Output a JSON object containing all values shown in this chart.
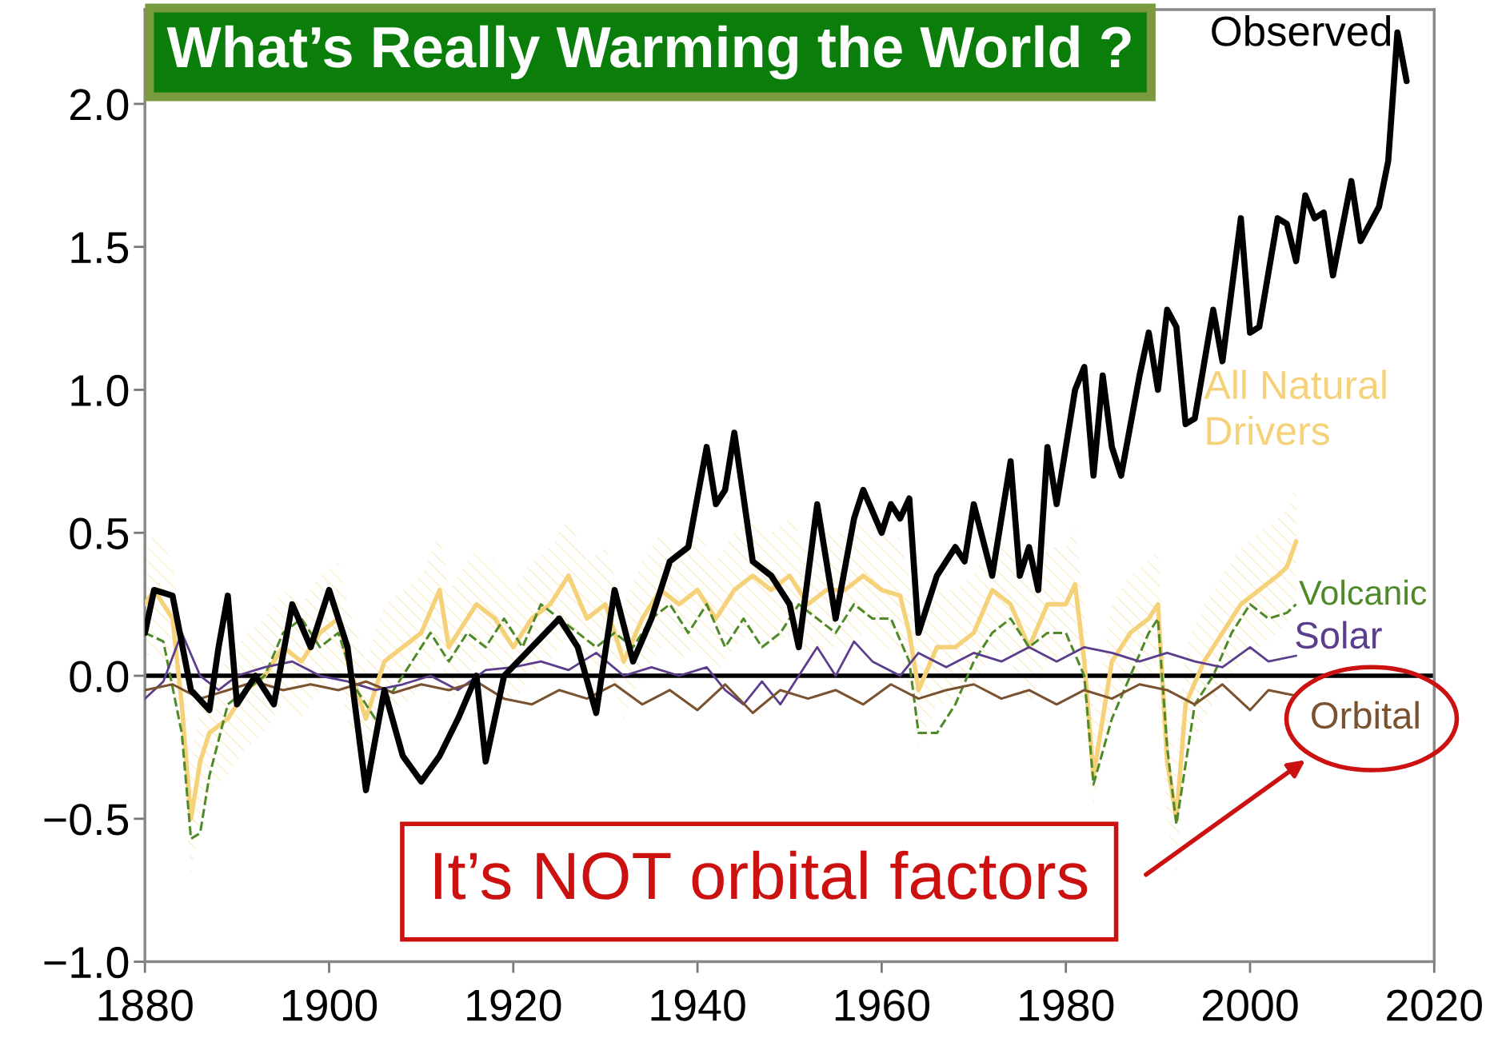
{
  "chart_data": {
    "type": "line",
    "title": "What’s Really Warming the World ?",
    "annotations": [
      "It’s NOT orbital factors"
    ],
    "xlim": [
      1880,
      2020
    ],
    "xticks": [
      1880,
      1900,
      1920,
      1940,
      1960,
      1980,
      2000,
      2020
    ],
    "ylim": [
      -1.0,
      2.33
    ],
    "yticks": [
      {
        "value": -1.0,
        "label": "−1.0"
      },
      {
        "value": -0.5,
        "label": "−0.5"
      },
      {
        "value": 0.0,
        "label": "0.0"
      },
      {
        "value": 0.5,
        "label": "0.5"
      },
      {
        "value": 1.0,
        "label": "1.0"
      },
      {
        "value": 1.5,
        "label": "1.5"
      },
      {
        "value": 2.0,
        "label": "2.0"
      }
    ],
    "grid": false,
    "legend": false,
    "marker": "none",
    "ref_lines": [
      {
        "axis": "y",
        "value": 0,
        "color": "#000000",
        "line_style": "solid"
      }
    ],
    "series": [
      {
        "name": "All Natural\nDrivers",
        "color": "#f5d27a",
        "line_style": "solid",
        "x": [
          1880,
          1881,
          1883,
          1884,
          1885,
          1886,
          1887,
          1889,
          1891,
          1893,
          1895,
          1897,
          1899,
          1901,
          1902,
          1904,
          1906,
          1908,
          1910,
          1912,
          1913,
          1916,
          1918,
          1920,
          1922,
          1924,
          1926,
          1928,
          1930,
          1932,
          1934,
          1936,
          1938,
          1940,
          1942,
          1944,
          1946,
          1948,
          1950,
          1952,
          1954,
          1956,
          1958,
          1960,
          1962,
          1963,
          1964,
          1966,
          1968,
          1970,
          1972,
          1974,
          1976,
          1978,
          1980,
          1981,
          1982,
          1983,
          1985,
          1987,
          1989,
          1990,
          1991,
          1992,
          1993,
          1995,
          1997,
          1999,
          2001,
          2003,
          2004,
          2005
        ],
        "values": [
          0.25,
          0.3,
          0.2,
          -0.1,
          -0.5,
          -0.3,
          -0.2,
          -0.15,
          -0.05,
          0.0,
          0.1,
          0.05,
          0.15,
          0.2,
          0.05,
          -0.15,
          0.05,
          0.1,
          0.15,
          0.3,
          0.1,
          0.25,
          0.2,
          0.1,
          0.2,
          0.25,
          0.35,
          0.2,
          0.25,
          0.05,
          0.2,
          0.3,
          0.25,
          0.3,
          0.2,
          0.3,
          0.35,
          0.3,
          0.35,
          0.25,
          0.3,
          0.3,
          0.35,
          0.3,
          0.28,
          0.15,
          -0.05,
          0.1,
          0.1,
          0.15,
          0.3,
          0.25,
          0.1,
          0.25,
          0.25,
          0.32,
          0.05,
          -0.35,
          0.05,
          0.15,
          0.2,
          0.25,
          -0.3,
          -0.5,
          -0.1,
          0.05,
          0.15,
          0.25,
          0.3,
          0.35,
          0.38,
          0.47
        ],
        "lower": [
          0.05,
          0.1,
          0.0,
          -0.3,
          -0.7,
          -0.5,
          -0.4,
          -0.35,
          -0.25,
          -0.2,
          -0.1,
          -0.15,
          -0.05,
          0.0,
          -0.15,
          -0.35,
          -0.15,
          -0.1,
          -0.05,
          0.1,
          -0.1,
          0.05,
          0.0,
          -0.1,
          0.0,
          0.05,
          0.15,
          0.0,
          0.05,
          -0.15,
          0.0,
          0.1,
          0.05,
          0.1,
          0.0,
          0.1,
          0.15,
          0.1,
          0.15,
          0.05,
          0.1,
          0.1,
          0.15,
          0.1,
          0.08,
          -0.05,
          -0.25,
          -0.1,
          -0.1,
          -0.05,
          0.1,
          0.05,
          -0.1,
          0.05,
          0.05,
          0.12,
          -0.15,
          -0.45,
          -0.15,
          -0.05,
          0.0,
          0.05,
          -0.5,
          -0.7,
          -0.3,
          -0.15,
          -0.05,
          0.05,
          0.1,
          0.15,
          0.18,
          0.27
        ],
        "upper": [
          0.45,
          0.5,
          0.4,
          0.1,
          -0.3,
          -0.1,
          0.0,
          0.05,
          0.15,
          0.2,
          0.3,
          0.25,
          0.35,
          0.4,
          0.25,
          0.05,
          0.25,
          0.3,
          0.35,
          0.5,
          0.3,
          0.45,
          0.4,
          0.3,
          0.4,
          0.45,
          0.55,
          0.4,
          0.45,
          0.25,
          0.4,
          0.5,
          0.45,
          0.5,
          0.4,
          0.5,
          0.55,
          0.5,
          0.55,
          0.45,
          0.5,
          0.5,
          0.55,
          0.5,
          0.48,
          0.35,
          0.15,
          0.3,
          0.3,
          0.35,
          0.5,
          0.45,
          0.3,
          0.45,
          0.45,
          0.52,
          0.25,
          -0.15,
          0.25,
          0.35,
          0.4,
          0.45,
          -0.1,
          -0.3,
          0.1,
          0.25,
          0.35,
          0.45,
          0.5,
          0.55,
          0.58,
          0.67
        ]
      },
      {
        "name": "Volcanic",
        "color": "#4f8a2a",
        "line_style": "dashed",
        "x": [
          1880,
          1882,
          1884,
          1885,
          1886,
          1887,
          1889,
          1891,
          1893,
          1895,
          1897,
          1899,
          1901,
          1902,
          1903,
          1905,
          1907,
          1909,
          1911,
          1913,
          1915,
          1917,
          1919,
          1921,
          1923,
          1925,
          1927,
          1929,
          1931,
          1933,
          1935,
          1937,
          1939,
          1941,
          1943,
          1945,
          1947,
          1949,
          1951,
          1953,
          1955,
          1957,
          1959,
          1961,
          1963,
          1964,
          1966,
          1968,
          1970,
          1972,
          1974,
          1976,
          1978,
          1980,
          1982,
          1983,
          1985,
          1987,
          1989,
          1990,
          1991,
          1992,
          1994,
          1996,
          1998,
          2000,
          2002,
          2004,
          2005
        ],
        "values": [
          0.15,
          0.12,
          -0.2,
          -0.57,
          -0.55,
          -0.35,
          -0.1,
          -0.05,
          0.0,
          0.15,
          0.2,
          0.1,
          0.15,
          0.05,
          -0.05,
          -0.15,
          -0.05,
          0.05,
          0.15,
          0.05,
          0.15,
          0.1,
          0.2,
          0.1,
          0.25,
          0.2,
          0.15,
          0.1,
          0.15,
          0.1,
          0.2,
          0.25,
          0.15,
          0.25,
          0.1,
          0.2,
          0.1,
          0.15,
          0.25,
          0.2,
          0.15,
          0.25,
          0.2,
          0.2,
          0.05,
          -0.2,
          -0.2,
          -0.1,
          0.05,
          0.15,
          0.2,
          0.1,
          0.15,
          0.15,
          0.0,
          -0.38,
          -0.15,
          0.0,
          0.15,
          0.2,
          -0.25,
          -0.52,
          -0.1,
          0.0,
          0.15,
          0.25,
          0.2,
          0.22,
          0.25
        ]
      },
      {
        "name": "Solar",
        "color": "#5b3d8c",
        "line_style": "solid",
        "x": [
          1880,
          1882,
          1884,
          1886,
          1888,
          1890,
          1893,
          1896,
          1899,
          1902,
          1905,
          1908,
          1911,
          1914,
          1917,
          1920,
          1923,
          1926,
          1929,
          1932,
          1935,
          1938,
          1941,
          1943,
          1945,
          1947,
          1949,
          1951,
          1953,
          1955,
          1957,
          1959,
          1962,
          1964,
          1967,
          1970,
          1973,
          1976,
          1979,
          1982,
          1985,
          1988,
          1991,
          1994,
          1997,
          2000,
          2002,
          2005
        ],
        "values": [
          -0.08,
          -0.02,
          0.15,
          0.0,
          -0.05,
          0.0,
          0.03,
          0.05,
          0.0,
          -0.02,
          -0.05,
          -0.03,
          0.0,
          -0.05,
          0.02,
          0.03,
          0.05,
          0.02,
          0.08,
          0.0,
          0.03,
          0.0,
          0.03,
          -0.05,
          -0.1,
          -0.02,
          -0.1,
          0.0,
          0.1,
          0.0,
          0.12,
          0.05,
          0.0,
          0.08,
          0.03,
          0.08,
          0.05,
          0.1,
          0.05,
          0.1,
          0.08,
          0.05,
          0.08,
          0.05,
          0.03,
          0.1,
          0.05,
          0.07
        ]
      },
      {
        "name": "Orbital",
        "color": "#7a5230",
        "line_style": "solid",
        "x": [
          1880,
          1883,
          1886,
          1889,
          1892,
          1895,
          1898,
          1901,
          1904,
          1907,
          1910,
          1913,
          1916,
          1919,
          1922,
          1925,
          1928,
          1931,
          1934,
          1937,
          1940,
          1943,
          1946,
          1949,
          1952,
          1955,
          1958,
          1961,
          1964,
          1967,
          1970,
          1973,
          1976,
          1979,
          1982,
          1985,
          1988,
          1991,
          1994,
          1997,
          2000,
          2002,
          2005
        ],
        "values": [
          -0.05,
          -0.03,
          -0.08,
          -0.05,
          -0.02,
          -0.05,
          -0.03,
          -0.05,
          -0.02,
          -0.06,
          -0.03,
          -0.05,
          -0.02,
          -0.08,
          -0.1,
          -0.05,
          -0.08,
          -0.03,
          -0.1,
          -0.05,
          -0.12,
          -0.03,
          -0.13,
          -0.05,
          -0.08,
          -0.05,
          -0.1,
          -0.03,
          -0.08,
          -0.05,
          -0.03,
          -0.08,
          -0.05,
          -0.1,
          -0.05,
          -0.08,
          -0.03,
          -0.05,
          -0.1,
          -0.03,
          -0.12,
          -0.05,
          -0.07
        ]
      },
      {
        "name": "Observed",
        "color": "#000000",
        "line_style": "solid",
        "x": [
          1880,
          1881,
          1883,
          1885,
          1887,
          1888,
          1889,
          1890,
          1892,
          1894,
          1896,
          1898,
          1900,
          1902,
          1904,
          1906,
          1908,
          1910,
          1912,
          1914,
          1916,
          1917,
          1919,
          1922,
          1925,
          1927,
          1929,
          1931,
          1933,
          1935,
          1937,
          1939,
          1941,
          1942,
          1943,
          1944,
          1946,
          1948,
          1950,
          1951,
          1953,
          1955,
          1957,
          1958,
          1960,
          1961,
          1962,
          1963,
          1964,
          1966,
          1968,
          1969,
          1970,
          1972,
          1974,
          1975,
          1976,
          1977,
          1978,
          1979,
          1981,
          1982,
          1983,
          1984,
          1985,
          1986,
          1988,
          1989,
          1990,
          1991,
          1992,
          1993,
          1994,
          1996,
          1997,
          1999,
          2000,
          2001,
          2003,
          2004,
          2005,
          2006,
          2007,
          2008,
          2009,
          2011,
          2012,
          2014,
          2015,
          2016,
          2017
        ],
        "values": [
          0.15,
          0.3,
          0.28,
          -0.05,
          -0.12,
          0.1,
          0.28,
          -0.1,
          0.0,
          -0.1,
          0.25,
          0.1,
          0.3,
          0.1,
          -0.4,
          -0.05,
          -0.28,
          -0.37,
          -0.28,
          -0.15,
          0.0,
          -0.3,
          0.0,
          0.1,
          0.2,
          0.1,
          -0.13,
          0.3,
          0.05,
          0.2,
          0.4,
          0.45,
          0.8,
          0.6,
          0.65,
          0.85,
          0.4,
          0.35,
          0.25,
          0.1,
          0.6,
          0.2,
          0.55,
          0.65,
          0.5,
          0.6,
          0.55,
          0.62,
          0.15,
          0.35,
          0.45,
          0.4,
          0.6,
          0.35,
          0.75,
          0.35,
          0.45,
          0.3,
          0.8,
          0.6,
          1.0,
          1.08,
          0.7,
          1.05,
          0.8,
          0.7,
          1.05,
          1.2,
          1.0,
          1.28,
          1.22,
          0.88,
          0.9,
          1.28,
          1.1,
          1.6,
          1.2,
          1.22,
          1.6,
          1.58,
          1.45,
          1.68,
          1.6,
          1.62,
          1.4,
          1.73,
          1.52,
          1.64,
          1.8,
          2.25,
          2.08
        ]
      }
    ]
  }
}
